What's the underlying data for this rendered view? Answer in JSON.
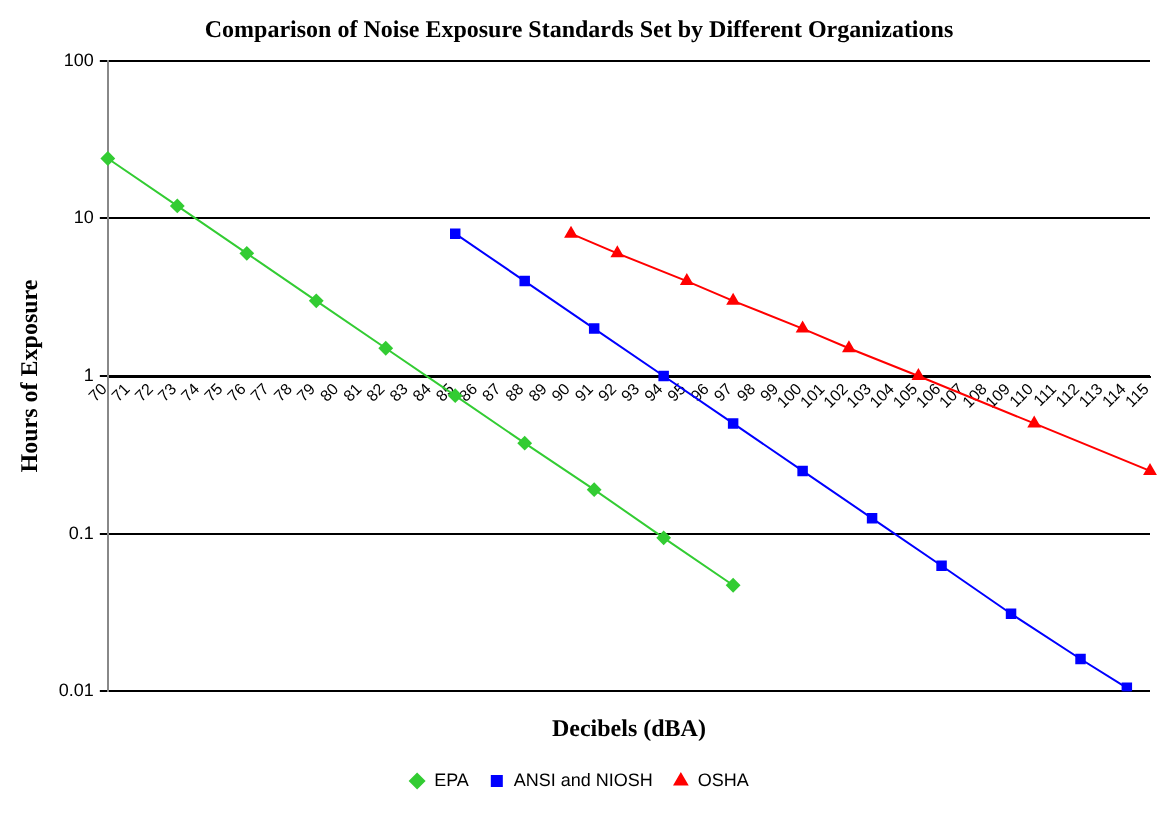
{
  "chart_data": {
    "type": "line",
    "title": "Comparison of Noise Exposure Standards Set by Different Organizations",
    "xlabel": "Decibels (dBA)",
    "ylabel": "Hours of Exposure",
    "categories": [
      "70",
      "71",
      "72",
      "73",
      "74",
      "75",
      "76",
      "77",
      "78",
      "79",
      "80",
      "81",
      "82",
      "83",
      "84",
      "85",
      "86",
      "87",
      "88",
      "89",
      "90",
      "91",
      "92",
      "93",
      "94",
      "95",
      "96",
      "97",
      "98",
      "99",
      "100",
      "101",
      "102",
      "103",
      "104",
      "105",
      "106",
      "107",
      "108",
      "109",
      "110",
      "111",
      "112",
      "113",
      "114",
      "115"
    ],
    "series": [
      {
        "name": "EPA",
        "color": "#33cc33",
        "marker": "diamond",
        "values": [
          24,
          null,
          null,
          12,
          null,
          null,
          6,
          null,
          null,
          3,
          null,
          null,
          1.5,
          null,
          null,
          0.75,
          null,
          null,
          0.375,
          null,
          null,
          0.19,
          null,
          null,
          0.094,
          null,
          null,
          0.047,
          null,
          null,
          null,
          null,
          null,
          null,
          null,
          null,
          null,
          null,
          null,
          null,
          null,
          null,
          null,
          null,
          null,
          null
        ]
      },
      {
        "name": "ANSI and NIOSH",
        "color": "#0000ff",
        "marker": "square",
        "values": [
          null,
          null,
          null,
          null,
          null,
          null,
          null,
          null,
          null,
          null,
          null,
          null,
          null,
          null,
          null,
          8,
          null,
          null,
          4,
          null,
          null,
          2,
          null,
          null,
          1,
          null,
          null,
          0.5,
          null,
          null,
          0.25,
          null,
          null,
          0.125,
          null,
          null,
          0.0625,
          null,
          null,
          0.031,
          null,
          null,
          0.016,
          null,
          0.0105,
          null
        ]
      },
      {
        "name": "OSHA",
        "color": "#ff0000",
        "marker": "triangle",
        "values": [
          null,
          null,
          null,
          null,
          null,
          null,
          null,
          null,
          null,
          null,
          null,
          null,
          null,
          null,
          null,
          null,
          null,
          null,
          null,
          null,
          8,
          null,
          6,
          null,
          null,
          4,
          null,
          3,
          null,
          null,
          2,
          null,
          1.5,
          null,
          null,
          1,
          null,
          null,
          null,
          null,
          0.5,
          null,
          null,
          null,
          null,
          0.25
        ]
      }
    ],
    "log": "y",
    "ylim": [
      0.01,
      100
    ],
    "yticks": [
      0.01,
      0.1,
      1,
      10,
      100
    ],
    "grid": "y",
    "legend": "bottom"
  }
}
